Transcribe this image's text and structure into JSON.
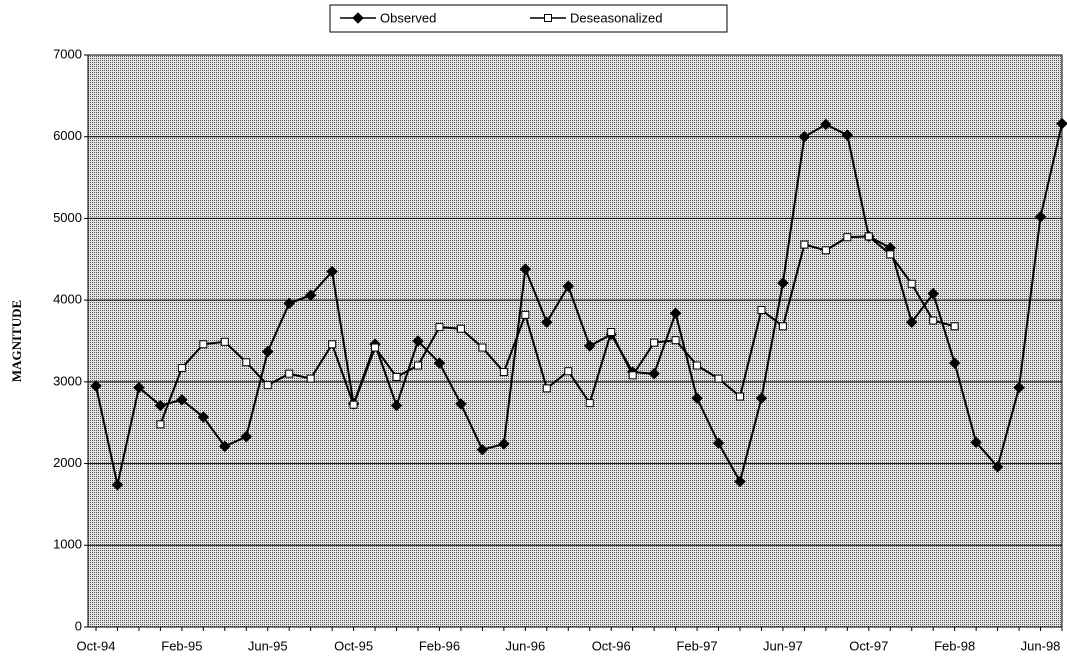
{
  "chart_data": {
    "type": "line",
    "y_label": "MAGNITUDE",
    "categories": [
      "Oct-94",
      null,
      null,
      null,
      "Feb-95",
      null,
      null,
      null,
      "Jun-95",
      null,
      null,
      null,
      "Oct-95",
      null,
      null,
      null,
      "Feb-96",
      null,
      null,
      null,
      "Jun-96",
      null,
      null,
      null,
      "Oct-96",
      null,
      null,
      null,
      "Feb-97",
      null,
      null,
      null,
      "Jun-97",
      null,
      null,
      null,
      "Oct-97",
      null,
      null,
      null,
      "Feb-98",
      null,
      null,
      null,
      "Jun-98",
      null
    ],
    "series": [
      {
        "name": "Observed",
        "color": "#000000",
        "marker": "diamond",
        "values": [
          2950,
          1740,
          2930,
          2710,
          2780,
          2570,
          2210,
          2330,
          3370,
          3960,
          4060,
          4350,
          2730,
          3460,
          2710,
          3500,
          3230,
          2730,
          2170,
          2240,
          4380,
          3730,
          4170,
          3440,
          3580,
          3120,
          3100,
          3840,
          2800,
          2250,
          1780,
          2800,
          4210,
          6000,
          6150,
          6020,
          4780,
          4640,
          3730,
          4080,
          3230,
          2260,
          1960,
          2930,
          5020,
          6160
        ]
      },
      {
        "name": "Deseasonalized",
        "color": "#000000",
        "marker": "square",
        "values": [
          null,
          null,
          null,
          2480,
          3170,
          3460,
          3490,
          3240,
          2960,
          3100,
          3040,
          3460,
          2720,
          3420,
          3060,
          3200,
          3670,
          3650,
          3420,
          3120,
          3820,
          2920,
          3130,
          2740,
          3610,
          3080,
          3480,
          3510,
          3200,
          3040,
          2820,
          3880,
          3680,
          4680,
          4610,
          4770,
          4780,
          4560,
          4200,
          3750,
          3680,
          null,
          null,
          null,
          null,
          null
        ]
      }
    ],
    "ylim": [
      0,
      7000
    ],
    "yticks": [
      0,
      1000,
      2000,
      3000,
      4000,
      5000,
      6000,
      7000
    ],
    "grid": true,
    "legend": "top"
  }
}
